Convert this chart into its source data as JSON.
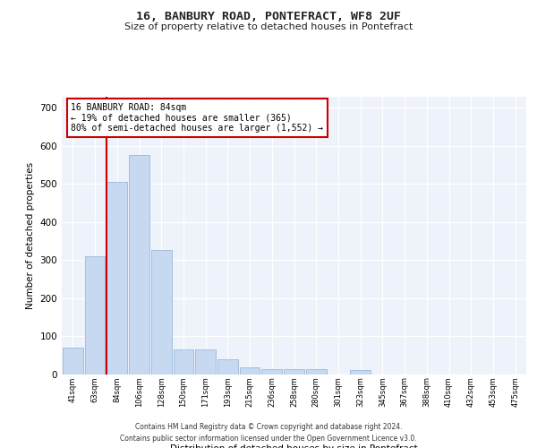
{
  "title": "16, BANBURY ROAD, PONTEFRACT, WF8 2UF",
  "subtitle": "Size of property relative to detached houses in Pontefract",
  "xlabel": "Distribution of detached houses by size in Pontefract",
  "ylabel": "Number of detached properties",
  "categories": [
    "41sqm",
    "63sqm",
    "84sqm",
    "106sqm",
    "128sqm",
    "150sqm",
    "171sqm",
    "193sqm",
    "215sqm",
    "236sqm",
    "258sqm",
    "280sqm",
    "301sqm",
    "323sqm",
    "345sqm",
    "367sqm",
    "388sqm",
    "410sqm",
    "432sqm",
    "453sqm",
    "475sqm"
  ],
  "values": [
    70,
    310,
    505,
    575,
    325,
    65,
    65,
    38,
    18,
    13,
    13,
    13,
    0,
    10,
    0,
    0,
    0,
    0,
    0,
    0,
    0
  ],
  "bar_color": "#c6d9f1",
  "bar_edge_color": "#8ab0d8",
  "vline_color": "#cc0000",
  "annotation_text": "16 BANBURY ROAD: 84sqm\n← 19% of detached houses are smaller (365)\n80% of semi-detached houses are larger (1,552) →",
  "annotation_box_color": "#ffffff",
  "annotation_box_edge": "#cc0000",
  "ylim": [
    0,
    730
  ],
  "yticks": [
    0,
    100,
    200,
    300,
    400,
    500,
    600,
    700
  ],
  "bg_color": "#eef2fa",
  "footer_line1": "Contains HM Land Registry data © Crown copyright and database right 2024.",
  "footer_line2": "Contains public sector information licensed under the Open Government Licence v3.0."
}
